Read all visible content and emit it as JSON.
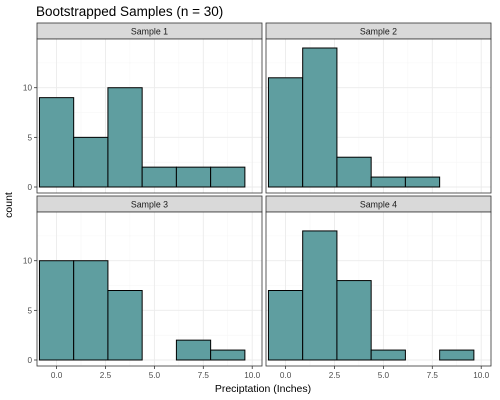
{
  "chart_data": {
    "type": "bar",
    "title": "Bootstrapped Samples (n = 30)",
    "xlabel": "Preciptation (Inches)",
    "ylabel": "count",
    "bar_color": "#5f9ea0",
    "bar_outline": "#000000",
    "strip_color": "#d9d9d9",
    "grid": true,
    "facet_layout": "2x2",
    "x_ticks": [
      0,
      2.5,
      5,
      7.5,
      10
    ],
    "x_tick_labels": [
      "0.0",
      "2.5",
      "5.0",
      "7.5",
      "10.0"
    ],
    "y_ticks": [
      0,
      5,
      10
    ],
    "y_tick_labels": [
      "0",
      "5",
      "10"
    ],
    "xlim": [
      -1,
      10.5
    ],
    "ylim": [
      0,
      14
    ],
    "bin_width": 1.75,
    "bin_centers": [
      0,
      1.75,
      3.5,
      5.25,
      7,
      8.75
    ],
    "bin_edges": [
      -0.875,
      0.875,
      2.625,
      4.375,
      6.125,
      7.875,
      9.625
    ],
    "panels": [
      {
        "label": "Sample 1",
        "values": [
          9,
          5,
          10,
          2,
          2,
          2
        ]
      },
      {
        "label": "Sample 2",
        "values": [
          11,
          14,
          3,
          1,
          1,
          0
        ]
      },
      {
        "label": "Sample 3",
        "values": [
          10,
          10,
          7,
          0,
          2,
          1
        ]
      },
      {
        "label": "Sample 4",
        "values": [
          7,
          13,
          8,
          1,
          0,
          1
        ]
      }
    ]
  }
}
